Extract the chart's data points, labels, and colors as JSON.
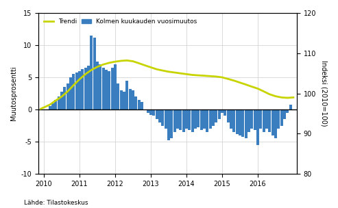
{
  "ylabel_left": "Muutosprosentti",
  "ylabel_right": "Indeksi (2010=100)",
  "legend_trendi": "Trendi",
  "legend_bars": "Kolmen kuukauden vuosimuutos",
  "ylim_left": [
    -10,
    15
  ],
  "ylim_right": [
    80,
    120
  ],
  "yticks_left": [
    -10,
    -5,
    0,
    5,
    10,
    15
  ],
  "yticks_right": [
    80,
    90,
    100,
    110,
    120
  ],
  "bar_color": "#3a7ebf",
  "trend_color": "#c8d400",
  "background_color": "#ffffff",
  "bar_dates_numeric": [
    2010.17,
    2010.25,
    2010.33,
    2010.42,
    2010.5,
    2010.58,
    2010.67,
    2010.75,
    2010.83,
    2010.92,
    2011.0,
    2011.08,
    2011.17,
    2011.25,
    2011.33,
    2011.42,
    2011.5,
    2011.58,
    2011.67,
    2011.75,
    2011.83,
    2011.92,
    2012.0,
    2012.08,
    2012.17,
    2012.25,
    2012.33,
    2012.42,
    2012.5,
    2012.58,
    2012.67,
    2012.75,
    2012.83,
    2012.92,
    2013.0,
    2013.08,
    2013.17,
    2013.25,
    2013.33,
    2013.42,
    2013.5,
    2013.58,
    2013.67,
    2013.75,
    2013.83,
    2013.92,
    2014.0,
    2014.08,
    2014.17,
    2014.25,
    2014.33,
    2014.42,
    2014.5,
    2014.58,
    2014.67,
    2014.75,
    2014.83,
    2014.92,
    2015.0,
    2015.08,
    2015.17,
    2015.25,
    2015.33,
    2015.42,
    2015.5,
    2015.58,
    2015.67,
    2015.75,
    2015.83,
    2015.92,
    2016.0,
    2016.08,
    2016.17,
    2016.25,
    2016.33,
    2016.42,
    2016.5,
    2016.58,
    2016.67,
    2016.75,
    2016.83,
    2016.92
  ],
  "bar_values": [
    0.5,
    1.0,
    1.5,
    2.0,
    2.8,
    3.5,
    4.0,
    5.0,
    5.5,
    5.8,
    6.0,
    6.3,
    6.5,
    6.8,
    11.5,
    11.2,
    7.5,
    7.0,
    6.5,
    6.2,
    6.0,
    6.5,
    7.0,
    4.0,
    3.0,
    2.8,
    4.5,
    3.2,
    3.0,
    2.0,
    1.5,
    1.2,
    0.0,
    -0.5,
    -0.8,
    -1.0,
    -1.5,
    -2.0,
    -2.5,
    -3.0,
    -4.8,
    -4.5,
    -3.5,
    -3.0,
    -3.2,
    -3.5,
    -3.0,
    -3.2,
    -3.5,
    -3.0,
    -2.8,
    -3.2,
    -3.0,
    -3.5,
    -3.0,
    -2.5,
    -2.0,
    -1.5,
    -0.5,
    -1.0,
    -2.0,
    -3.0,
    -3.5,
    -3.8,
    -4.0,
    -4.2,
    -4.5,
    -3.5,
    -3.0,
    -3.2,
    -5.5,
    -3.0,
    -3.5,
    -3.0,
    -3.5,
    -4.0,
    -4.5,
    -3.0,
    -2.5,
    -1.5,
    -0.5,
    0.7
  ],
  "trend_x": [
    2009.92,
    2010.0,
    2010.17,
    2010.33,
    2010.5,
    2010.67,
    2010.83,
    2011.0,
    2011.17,
    2011.33,
    2011.5,
    2011.67,
    2011.83,
    2012.0,
    2012.17,
    2012.33,
    2012.5,
    2012.67,
    2012.83,
    2013.0,
    2013.17,
    2013.33,
    2013.5,
    2013.67,
    2013.83,
    2014.0,
    2014.17,
    2014.33,
    2014.5,
    2014.67,
    2014.83,
    2015.0,
    2015.17,
    2015.33,
    2015.5,
    2015.67,
    2015.83,
    2016.0,
    2016.17,
    2016.33,
    2016.5,
    2016.67,
    2016.83,
    2017.0
  ],
  "trend_y": [
    96.2,
    96.5,
    97.2,
    98.2,
    99.2,
    100.5,
    102.0,
    103.5,
    104.8,
    105.8,
    106.6,
    107.2,
    107.6,
    107.9,
    108.1,
    108.2,
    108.0,
    107.5,
    107.0,
    106.5,
    106.0,
    105.7,
    105.4,
    105.2,
    105.0,
    104.8,
    104.6,
    104.5,
    104.4,
    104.3,
    104.2,
    104.0,
    103.6,
    103.2,
    102.7,
    102.2,
    101.7,
    101.2,
    100.5,
    99.8,
    99.3,
    99.0,
    98.9,
    99.0
  ],
  "xticks": [
    2010,
    2011,
    2012,
    2013,
    2014,
    2015,
    2016
  ],
  "xlim": [
    2009.85,
    2017.1
  ]
}
